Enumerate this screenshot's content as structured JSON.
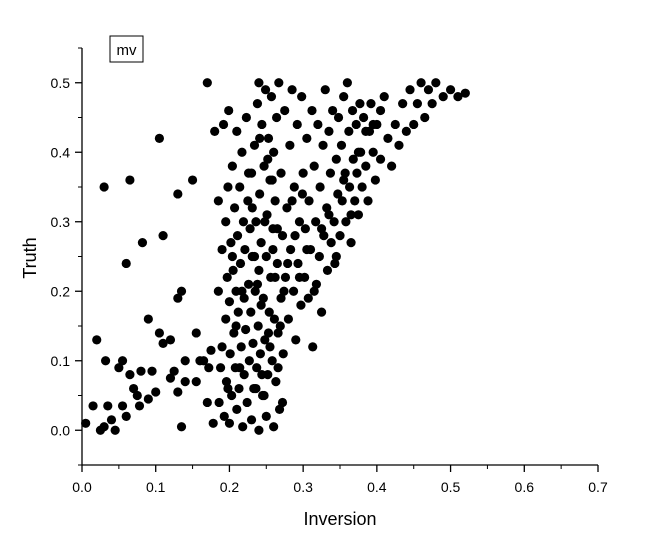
{
  "chart_data": {
    "type": "scatter",
    "title": "",
    "legend_label": "mv",
    "legend_position": "top-left",
    "xlabel": "Inversion",
    "ylabel": "Truth",
    "xlim": [
      0.0,
      0.7
    ],
    "ylim": [
      -0.05,
      0.55
    ],
    "x_ticks": [
      "0.0",
      "0.1",
      "0.2",
      "0.3",
      "0.4",
      "0.5",
      "0.6",
      "0.7"
    ],
    "y_ticks": [
      "0.0",
      "0.1",
      "0.2",
      "0.3",
      "0.4",
      "0.5"
    ],
    "grid": false,
    "marker_color": "#000000",
    "points": [
      [
        0.005,
        0.01
      ],
      [
        0.015,
        0.035
      ],
      [
        0.02,
        0.13
      ],
      [
        0.025,
        0.0
      ],
      [
        0.03,
        0.35
      ],
      [
        0.03,
        0.005
      ],
      [
        0.032,
        0.1
      ],
      [
        0.035,
        0.035
      ],
      [
        0.04,
        0.015
      ],
      [
        0.045,
        0.0
      ],
      [
        0.05,
        0.09
      ],
      [
        0.055,
        0.035
      ],
      [
        0.055,
        0.1
      ],
      [
        0.06,
        0.02
      ],
      [
        0.06,
        0.24
      ],
      [
        0.065,
        0.36
      ],
      [
        0.065,
        0.08
      ],
      [
        0.07,
        0.06
      ],
      [
        0.075,
        0.05
      ],
      [
        0.078,
        0.035
      ],
      [
        0.08,
        0.085
      ],
      [
        0.082,
        0.27
      ],
      [
        0.09,
        0.16
      ],
      [
        0.09,
        0.045
      ],
      [
        0.095,
        0.085
      ],
      [
        0.1,
        0.055
      ],
      [
        0.105,
        0.42
      ],
      [
        0.105,
        0.14
      ],
      [
        0.11,
        0.28
      ],
      [
        0.11,
        0.125
      ],
      [
        0.12,
        0.13
      ],
      [
        0.12,
        0.075
      ],
      [
        0.125,
        0.085
      ],
      [
        0.13,
        0.34
      ],
      [
        0.13,
        0.19
      ],
      [
        0.13,
        0.055
      ],
      [
        0.135,
        0.2
      ],
      [
        0.135,
        0.005
      ],
      [
        0.14,
        0.07
      ],
      [
        0.14,
        0.1
      ],
      [
        0.15,
        0.36
      ],
      [
        0.155,
        0.14
      ],
      [
        0.155,
        0.07
      ],
      [
        0.16,
        0.1
      ],
      [
        0.165,
        0.1
      ],
      [
        0.17,
        0.04
      ],
      [
        0.17,
        0.5
      ],
      [
        0.172,
        0.09
      ],
      [
        0.175,
        0.115
      ],
      [
        0.178,
        0.01
      ],
      [
        0.18,
        0.43
      ],
      [
        0.185,
        0.2
      ],
      [
        0.185,
        0.33
      ],
      [
        0.186,
        0.04
      ],
      [
        0.188,
        0.09
      ],
      [
        0.19,
        0.26
      ],
      [
        0.19,
        0.12
      ],
      [
        0.192,
        0.44
      ],
      [
        0.193,
        0.02
      ],
      [
        0.195,
        0.3
      ],
      [
        0.195,
        0.16
      ],
      [
        0.196,
        0.07
      ],
      [
        0.197,
        0.22
      ],
      [
        0.198,
        0.35
      ],
      [
        0.199,
        0.46
      ],
      [
        0.2,
        0.01
      ],
      [
        0.2,
        0.185
      ],
      [
        0.201,
        0.11
      ],
      [
        0.202,
        0.27
      ],
      [
        0.203,
        0.05
      ],
      [
        0.204,
        0.38
      ],
      [
        0.205,
        0.23
      ],
      [
        0.206,
        0.14
      ],
      [
        0.207,
        0.32
      ],
      [
        0.208,
        0.09
      ],
      [
        0.209,
        0.2
      ],
      [
        0.21,
        0.43
      ],
      [
        0.21,
        0.03
      ],
      [
        0.211,
        0.28
      ],
      [
        0.212,
        0.17
      ],
      [
        0.213,
        0.06
      ],
      [
        0.214,
        0.35
      ],
      [
        0.215,
        0.24
      ],
      [
        0.216,
        0.12
      ],
      [
        0.217,
        0.4
      ],
      [
        0.218,
        0.005
      ],
      [
        0.219,
        0.3
      ],
      [
        0.22,
        0.19
      ],
      [
        0.22,
        0.08
      ],
      [
        0.221,
        0.26
      ],
      [
        0.222,
        0.145
      ],
      [
        0.223,
        0.45
      ],
      [
        0.224,
        0.04
      ],
      [
        0.225,
        0.33
      ],
      [
        0.226,
        0.21
      ],
      [
        0.227,
        0.1
      ],
      [
        0.228,
        0.29
      ],
      [
        0.229,
        0.17
      ],
      [
        0.23,
        0.015
      ],
      [
        0.23,
        0.37
      ],
      [
        0.231,
        0.25
      ],
      [
        0.232,
        0.125
      ],
      [
        0.233,
        0.06
      ],
      [
        0.234,
        0.41
      ],
      [
        0.235,
        0.2
      ],
      [
        0.236,
        0.3
      ],
      [
        0.237,
        0.09
      ],
      [
        0.238,
        0.47
      ],
      [
        0.239,
        0.15
      ],
      [
        0.24,
        0.5
      ],
      [
        0.24,
        0.23
      ],
      [
        0.24,
        0.0
      ],
      [
        0.241,
        0.34
      ],
      [
        0.242,
        0.11
      ],
      [
        0.243,
        0.27
      ],
      [
        0.244,
        0.44
      ],
      [
        0.245,
        0.05
      ],
      [
        0.246,
        0.19
      ],
      [
        0.247,
        0.38
      ],
      [
        0.248,
        0.13
      ],
      [
        0.249,
        0.49
      ],
      [
        0.25,
        0.25
      ],
      [
        0.25,
        0.02
      ],
      [
        0.251,
        0.31
      ],
      [
        0.252,
        0.08
      ],
      [
        0.253,
        0.42
      ],
      [
        0.254,
        0.17
      ],
      [
        0.255,
        0.36
      ],
      [
        0.256,
        0.22
      ],
      [
        0.257,
        0.48
      ],
      [
        0.258,
        0.1
      ],
      [
        0.259,
        0.29
      ],
      [
        0.26,
        0.005
      ],
      [
        0.26,
        0.4
      ],
      [
        0.261,
        0.16
      ],
      [
        0.262,
        0.33
      ],
      [
        0.263,
        0.07
      ],
      [
        0.264,
        0.45
      ],
      [
        0.265,
        0.24
      ],
      [
        0.266,
        0.14
      ],
      [
        0.267,
        0.5
      ],
      [
        0.268,
        0.03
      ],
      [
        0.27,
        0.37
      ],
      [
        0.27,
        0.19
      ],
      [
        0.272,
        0.28
      ],
      [
        0.273,
        0.11
      ],
      [
        0.275,
        0.46
      ],
      [
        0.276,
        0.22
      ],
      [
        0.278,
        0.32
      ],
      [
        0.28,
        0.16
      ],
      [
        0.282,
        0.41
      ],
      [
        0.283,
        0.26
      ],
      [
        0.285,
        0.49
      ],
      [
        0.287,
        0.2
      ],
      [
        0.288,
        0.35
      ],
      [
        0.29,
        0.13
      ],
      [
        0.292,
        0.44
      ],
      [
        0.293,
        0.24
      ],
      [
        0.295,
        0.3
      ],
      [
        0.297,
        0.18
      ],
      [
        0.298,
        0.48
      ],
      [
        0.3,
        0.37
      ],
      [
        0.302,
        0.22
      ],
      [
        0.303,
        0.29
      ],
      [
        0.305,
        0.42
      ],
      [
        0.307,
        0.19
      ],
      [
        0.308,
        0.33
      ],
      [
        0.31,
        0.26
      ],
      [
        0.312,
        0.46
      ],
      [
        0.313,
        0.12
      ],
      [
        0.315,
        0.38
      ],
      [
        0.317,
        0.3
      ],
      [
        0.318,
        0.21
      ],
      [
        0.32,
        0.44
      ],
      [
        0.322,
        0.25
      ],
      [
        0.323,
        0.35
      ],
      [
        0.325,
        0.17
      ],
      [
        0.327,
        0.41
      ],
      [
        0.328,
        0.28
      ],
      [
        0.33,
        0.49
      ],
      [
        0.332,
        0.32
      ],
      [
        0.333,
        0.23
      ],
      [
        0.335,
        0.43
      ],
      [
        0.337,
        0.37
      ],
      [
        0.338,
        0.27
      ],
      [
        0.34,
        0.46
      ],
      [
        0.342,
        0.3
      ],
      [
        0.343,
        0.24
      ],
      [
        0.345,
        0.39
      ],
      [
        0.347,
        0.34
      ],
      [
        0.348,
        0.45
      ],
      [
        0.35,
        0.28
      ],
      [
        0.352,
        0.41
      ],
      [
        0.353,
        0.33
      ],
      [
        0.355,
        0.48
      ],
      [
        0.357,
        0.37
      ],
      [
        0.358,
        0.3
      ],
      [
        0.36,
        0.5
      ],
      [
        0.362,
        0.43
      ],
      [
        0.363,
        0.35
      ],
      [
        0.365,
        0.27
      ],
      [
        0.367,
        0.46
      ],
      [
        0.368,
        0.39
      ],
      [
        0.37,
        0.33
      ],
      [
        0.372,
        0.44
      ],
      [
        0.373,
        0.37
      ],
      [
        0.375,
        0.31
      ],
      [
        0.377,
        0.47
      ],
      [
        0.378,
        0.4
      ],
      [
        0.38,
        0.35
      ],
      [
        0.382,
        0.45
      ],
      [
        0.385,
        0.38
      ],
      [
        0.388,
        0.33
      ],
      [
        0.39,
        0.43
      ],
      [
        0.392,
        0.47
      ],
      [
        0.395,
        0.4
      ],
      [
        0.398,
        0.36
      ],
      [
        0.4,
        0.44
      ],
      [
        0.405,
        0.39
      ],
      [
        0.41,
        0.48
      ],
      [
        0.415,
        0.42
      ],
      [
        0.42,
        0.38
      ],
      [
        0.425,
        0.44
      ],
      [
        0.43,
        0.41
      ],
      [
        0.435,
        0.47
      ],
      [
        0.44,
        0.43
      ],
      [
        0.445,
        0.49
      ],
      [
        0.45,
        0.44
      ],
      [
        0.455,
        0.47
      ],
      [
        0.46,
        0.5
      ],
      [
        0.465,
        0.45
      ],
      [
        0.47,
        0.49
      ],
      [
        0.475,
        0.47
      ],
      [
        0.48,
        0.5
      ],
      [
        0.49,
        0.48
      ],
      [
        0.5,
        0.49
      ],
      [
        0.51,
        0.48
      ],
      [
        0.52,
        0.485
      ],
      [
        0.244,
        0.08
      ],
      [
        0.253,
        0.14
      ],
      [
        0.262,
        0.22
      ],
      [
        0.248,
        0.3
      ],
      [
        0.236,
        0.06
      ],
      [
        0.258,
        0.36
      ],
      [
        0.241,
        0.42
      ],
      [
        0.266,
        0.09
      ],
      [
        0.231,
        0.32
      ],
      [
        0.272,
        0.04
      ],
      [
        0.214,
        0.09
      ],
      [
        0.209,
        0.15
      ],
      [
        0.204,
        0.25
      ],
      [
        0.198,
        0.06
      ],
      [
        0.217,
        0.2
      ],
      [
        0.226,
        0.37
      ],
      [
        0.234,
        0.25
      ],
      [
        0.243,
        0.18
      ],
      [
        0.255,
        0.12
      ],
      [
        0.265,
        0.29
      ],
      [
        0.274,
        0.2
      ],
      [
        0.285,
        0.33
      ],
      [
        0.295,
        0.22
      ],
      [
        0.305,
        0.26
      ],
      [
        0.315,
        0.2
      ],
      [
        0.325,
        0.29
      ],
      [
        0.335,
        0.31
      ],
      [
        0.345,
        0.25
      ],
      [
        0.355,
        0.36
      ],
      [
        0.365,
        0.31
      ],
      [
        0.375,
        0.4
      ],
      [
        0.385,
        0.43
      ],
      [
        0.395,
        0.44
      ],
      [
        0.405,
        0.46
      ],
      [
        0.238,
        0.21
      ],
      [
        0.247,
        0.05
      ],
      [
        0.252,
        0.39
      ],
      [
        0.259,
        0.26
      ],
      [
        0.269,
        0.15
      ],
      [
        0.279,
        0.24
      ],
      [
        0.289,
        0.28
      ],
      [
        0.299,
        0.34
      ]
    ]
  }
}
